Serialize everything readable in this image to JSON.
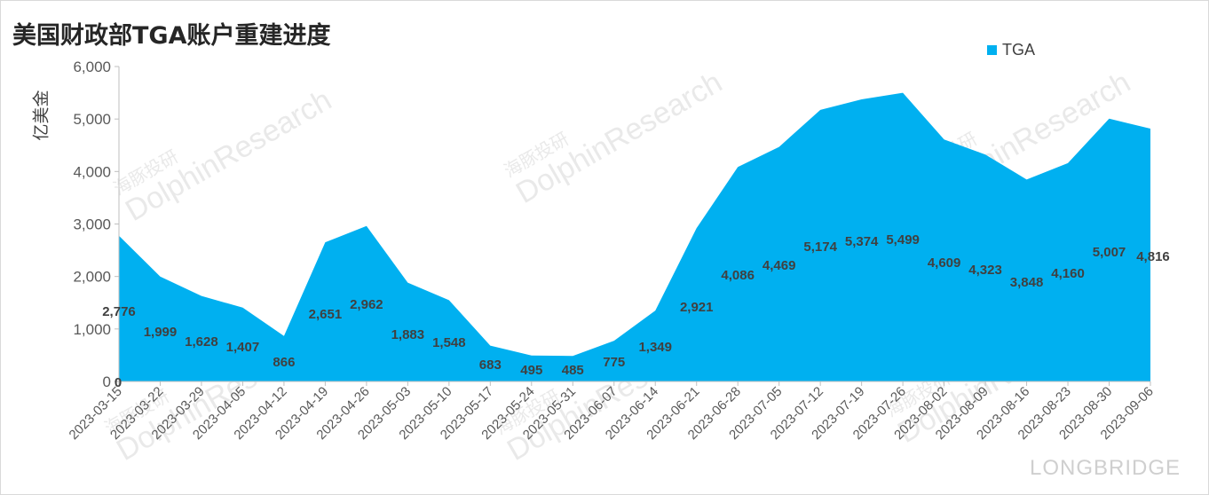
{
  "title": "美国财政部TGA账户重建进度",
  "brand_watermark": "LONGBRIDGE",
  "watermark_text": [
    "海豚投研",
    "DolphinResearch"
  ],
  "colors": {
    "area": "#00b0f0",
    "axis": "#bfbfbf",
    "text": "#404040"
  },
  "chart_data": {
    "type": "area",
    "title": "美国财政部TGA账户重建进度",
    "ylabel": "亿美金",
    "xlabel": "",
    "ylim": [
      0,
      6000
    ],
    "yticks": [
      "0",
      "1,000",
      "2,000",
      "3,000",
      "4,000",
      "5,000",
      "6,000"
    ],
    "legend_position": "top-right",
    "grid": false,
    "categories": [
      "2023-03-15",
      "2023-03-22",
      "2023-03-29",
      "2023-04-05",
      "2023-04-12",
      "2023-04-19",
      "2023-04-26",
      "2023-05-03",
      "2023-05-10",
      "2023-05-17",
      "2023-05-24",
      "2023-05-31",
      "2023-06-07",
      "2023-06-14",
      "2023-06-21",
      "2023-06-28",
      "2023-07-05",
      "2023-07-12",
      "2023-07-19",
      "2023-07-26",
      "2023-08-02",
      "2023-08-09",
      "2023-08-16",
      "2023-08-23",
      "2023-08-30",
      "2023-09-06"
    ],
    "series": [
      {
        "name": "TGA",
        "values": [
          2776,
          1999,
          1628,
          1407,
          866,
          2651,
          2962,
          1883,
          1548,
          683,
          495,
          485,
          775,
          1349,
          2921,
          4086,
          4469,
          5174,
          5374,
          5499,
          4609,
          4323,
          3848,
          4160,
          5007,
          4816
        ],
        "labels": [
          "2,776",
          "1,999",
          "1,628",
          "1,407",
          "866",
          "2,651",
          "2,962",
          "1,883",
          "1,548",
          "683",
          "495",
          "485",
          "775",
          "1,349",
          "2,921",
          "4,086",
          "4,469",
          "5,174",
          "5,374",
          "5,499",
          "4,609",
          "4,323",
          "3,848",
          "4,160",
          "5,007",
          "4,816"
        ]
      }
    ],
    "extra_labels": [
      "0"
    ]
  }
}
